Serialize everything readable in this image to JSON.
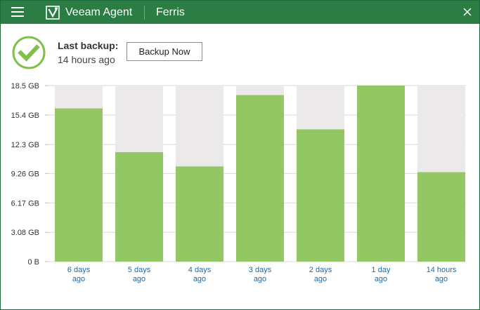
{
  "titlebar": {
    "app_name": "Veeam Agent",
    "host_name": "Ferris"
  },
  "status": {
    "label": "Last backup:",
    "value": "14 hours ago",
    "state": "success"
  },
  "actions": {
    "backup_now": "Backup Now"
  },
  "colors": {
    "titlebar": "#2c7d44",
    "bar_fill": "#93c763",
    "bar_track": "#ebe9ea",
    "axis_label_link": "#1f6aa5",
    "status_check": "#7fbf4a"
  },
  "icons": {
    "menu": "hamburger-menu-icon",
    "logo": "veeam-logo-icon",
    "close": "close-icon",
    "status": "check-circle-icon"
  },
  "chart_data": {
    "type": "bar",
    "title": "",
    "xlabel": "",
    "ylabel": "",
    "categories": [
      "6 days ago",
      "5 days ago",
      "4 days ago",
      "3 days ago",
      "2 days ago",
      "1 day ago",
      "14 hours ago"
    ],
    "category_lines": [
      [
        "6 days",
        "ago"
      ],
      [
        "5 days",
        "ago"
      ],
      [
        "4 days",
        "ago"
      ],
      [
        "3 days",
        "ago"
      ],
      [
        "2 days",
        "ago"
      ],
      [
        "1 day",
        "ago"
      ],
      [
        "14 hours",
        "ago"
      ]
    ],
    "values": [
      16.1,
      11.5,
      10.0,
      17.5,
      13.9,
      18.5,
      9.4
    ],
    "unit": "GB",
    "ylim": [
      0,
      18.5
    ],
    "yticks": [
      0,
      3.08,
      6.17,
      9.26,
      12.3,
      15.4,
      18.5
    ],
    "ytick_labels": [
      "0 B",
      "3.08 GB",
      "6.17 GB",
      "9.26 GB",
      "12.3 GB",
      "15.4 GB",
      "18.5 GB"
    ],
    "grid": true,
    "legend": "none"
  }
}
